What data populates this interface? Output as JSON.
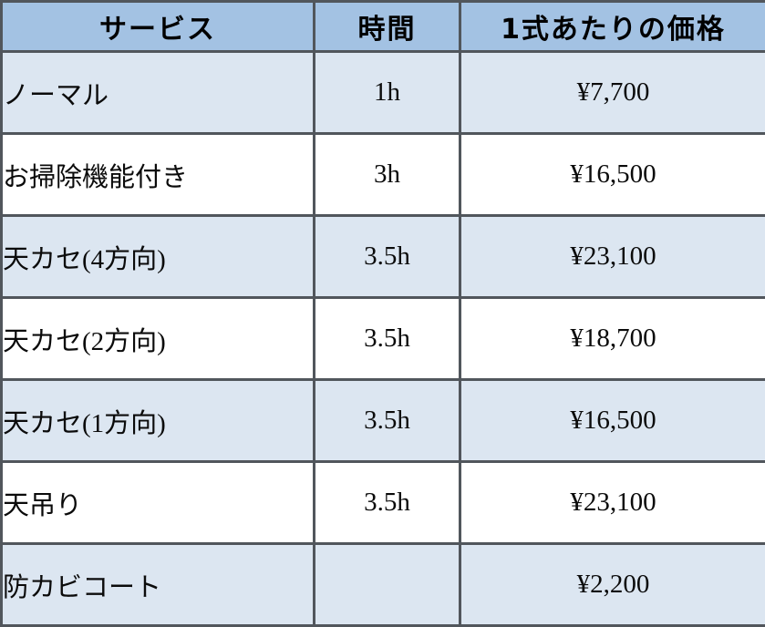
{
  "chart_data": {
    "type": "table",
    "columns": [
      "サービス",
      "時間",
      "1式あたりの価格"
    ],
    "rows": [
      [
        "ノーマル",
        "1h",
        "¥7,700"
      ],
      [
        "お掃除機能付き",
        "3h",
        "¥16,500"
      ],
      [
        "天カセ(4方向)",
        "3.5h",
        "¥23,100"
      ],
      [
        "天カセ(2方向)",
        "3.5h",
        "¥18,700"
      ],
      [
        "天カセ(1方向)",
        "3.5h",
        "¥16,500"
      ],
      [
        "天吊り",
        "3.5h",
        "¥23,100"
      ],
      [
        "防カビコート",
        "",
        "¥2,200"
      ]
    ]
  },
  "colors": {
    "header_bg": "#a3c2e3",
    "row_alt_bg": "#dce6f1",
    "row_bg": "#ffffff",
    "border": "#51565c",
    "text": "#0b0b0b"
  }
}
